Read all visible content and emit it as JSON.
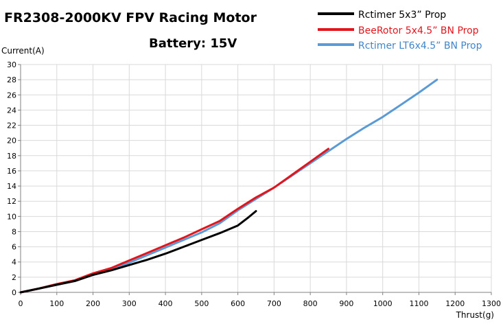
{
  "chart_data": {
    "type": "line",
    "title": "FR2308-2000KV FPV Racing Motor",
    "subtitle": "Battery: 15V",
    "xlabel": "Thrust(g)",
    "ylabel": "Current(A)",
    "xlim": [
      0,
      1300
    ],
    "ylim": [
      0,
      30
    ],
    "x_ticks": [
      "0",
      "100",
      "200",
      "300",
      "400",
      "500",
      "600",
      "700",
      "800",
      "900",
      "1000",
      "1100",
      "1200",
      "1300"
    ],
    "y_ticks": [
      "0",
      "2",
      "4",
      "6",
      "8",
      "10",
      "12",
      "14",
      "16",
      "18",
      "20",
      "22",
      "24",
      "26",
      "28",
      "30"
    ],
    "grid": true,
    "legend_position": "top-right",
    "series": [
      {
        "name": "Rctimer 5x3” Prop",
        "color": "#000000",
        "points": [
          [
            0,
            0
          ],
          [
            50,
            0.5
          ],
          [
            100,
            1.0
          ],
          [
            150,
            1.5
          ],
          [
            200,
            2.3
          ],
          [
            250,
            2.9
          ],
          [
            300,
            3.6
          ],
          [
            350,
            4.3
          ],
          [
            400,
            5.1
          ],
          [
            450,
            6.0
          ],
          [
            500,
            6.9
          ],
          [
            550,
            7.8
          ],
          [
            600,
            8.8
          ],
          [
            630,
            9.9
          ],
          [
            650,
            10.7
          ]
        ]
      },
      {
        "name": "BeeRotor 5x4.5” BN Prop",
        "color": "#e3141b",
        "points": [
          [
            0,
            0
          ],
          [
            50,
            0.5
          ],
          [
            100,
            1.1
          ],
          [
            150,
            1.6
          ],
          [
            200,
            2.5
          ],
          [
            250,
            3.2
          ],
          [
            300,
            4.2
          ],
          [
            350,
            5.2
          ],
          [
            400,
            6.2
          ],
          [
            450,
            7.2
          ],
          [
            500,
            8.3
          ],
          [
            550,
            9.4
          ],
          [
            600,
            11.0
          ],
          [
            650,
            12.5
          ],
          [
            700,
            13.8
          ],
          [
            750,
            15.5
          ],
          [
            800,
            17.2
          ],
          [
            850,
            18.9
          ]
        ]
      },
      {
        "name": "Rctimer LT6x4.5” BN Prop",
        "color": "#5b9bd5",
        "points": [
          [
            0,
            0
          ],
          [
            50,
            0.5
          ],
          [
            100,
            1.0
          ],
          [
            150,
            1.5
          ],
          [
            200,
            2.3
          ],
          [
            250,
            3.0
          ],
          [
            300,
            3.9
          ],
          [
            350,
            4.9
          ],
          [
            400,
            5.9
          ],
          [
            450,
            6.9
          ],
          [
            500,
            7.9
          ],
          [
            550,
            9.1
          ],
          [
            600,
            10.8
          ],
          [
            650,
            12.3
          ],
          [
            700,
            13.8
          ],
          [
            750,
            15.4
          ],
          [
            800,
            17.0
          ],
          [
            850,
            18.6
          ],
          [
            900,
            20.2
          ],
          [
            950,
            21.7
          ],
          [
            1000,
            23.1
          ],
          [
            1050,
            24.7
          ],
          [
            1100,
            26.3
          ],
          [
            1150,
            28.0
          ]
        ]
      }
    ]
  }
}
